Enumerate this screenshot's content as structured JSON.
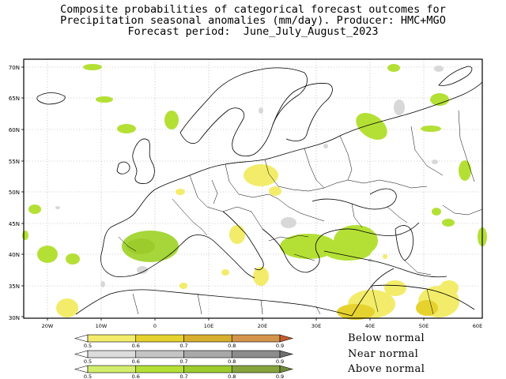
{
  "title": {
    "line1": "Composite probabilities of categorical forecast outcomes for",
    "line2": "Precipitation seasonal anomalies (mm/day). Producer: HMC+MGO",
    "line3": "Forecast period:  June_July_August_2023"
  },
  "axes": {
    "lat_labels": [
      "70N",
      "65N",
      "60N",
      "55N",
      "50N",
      "45N",
      "40N",
      "35N",
      "30N"
    ],
    "lon_labels": [
      "20W",
      "10W",
      "0",
      "10E",
      "20E",
      "30E",
      "40E",
      "50E",
      "60E"
    ]
  },
  "legend": {
    "categories": [
      {
        "name": "Below normal",
        "colors": [
          "#ffffff",
          "#f2ec6a",
          "#e6d22e",
          "#d8ae2e",
          "#d3944c",
          "#c75a2a"
        ],
        "ticks": [
          "0.5",
          "0.6",
          "0.7",
          "0.8",
          "0.9"
        ]
      },
      {
        "name": "Near normal",
        "colors": [
          "#ffffff",
          "#dcdcdc",
          "#c4c4c4",
          "#a8a8a8",
          "#8c8c8c",
          "#6e6e6e"
        ],
        "ticks": [
          "0.5",
          "0.6",
          "0.7",
          "0.8",
          "0.9"
        ]
      },
      {
        "name": "Above normal",
        "colors": [
          "#ffffff",
          "#d2ee6c",
          "#b4e036",
          "#9ccc2c",
          "#86a43c",
          "#6e8a3c"
        ],
        "ticks": [
          "0.5",
          "0.6",
          "0.7",
          "0.8",
          "0.9"
        ]
      }
    ]
  }
}
